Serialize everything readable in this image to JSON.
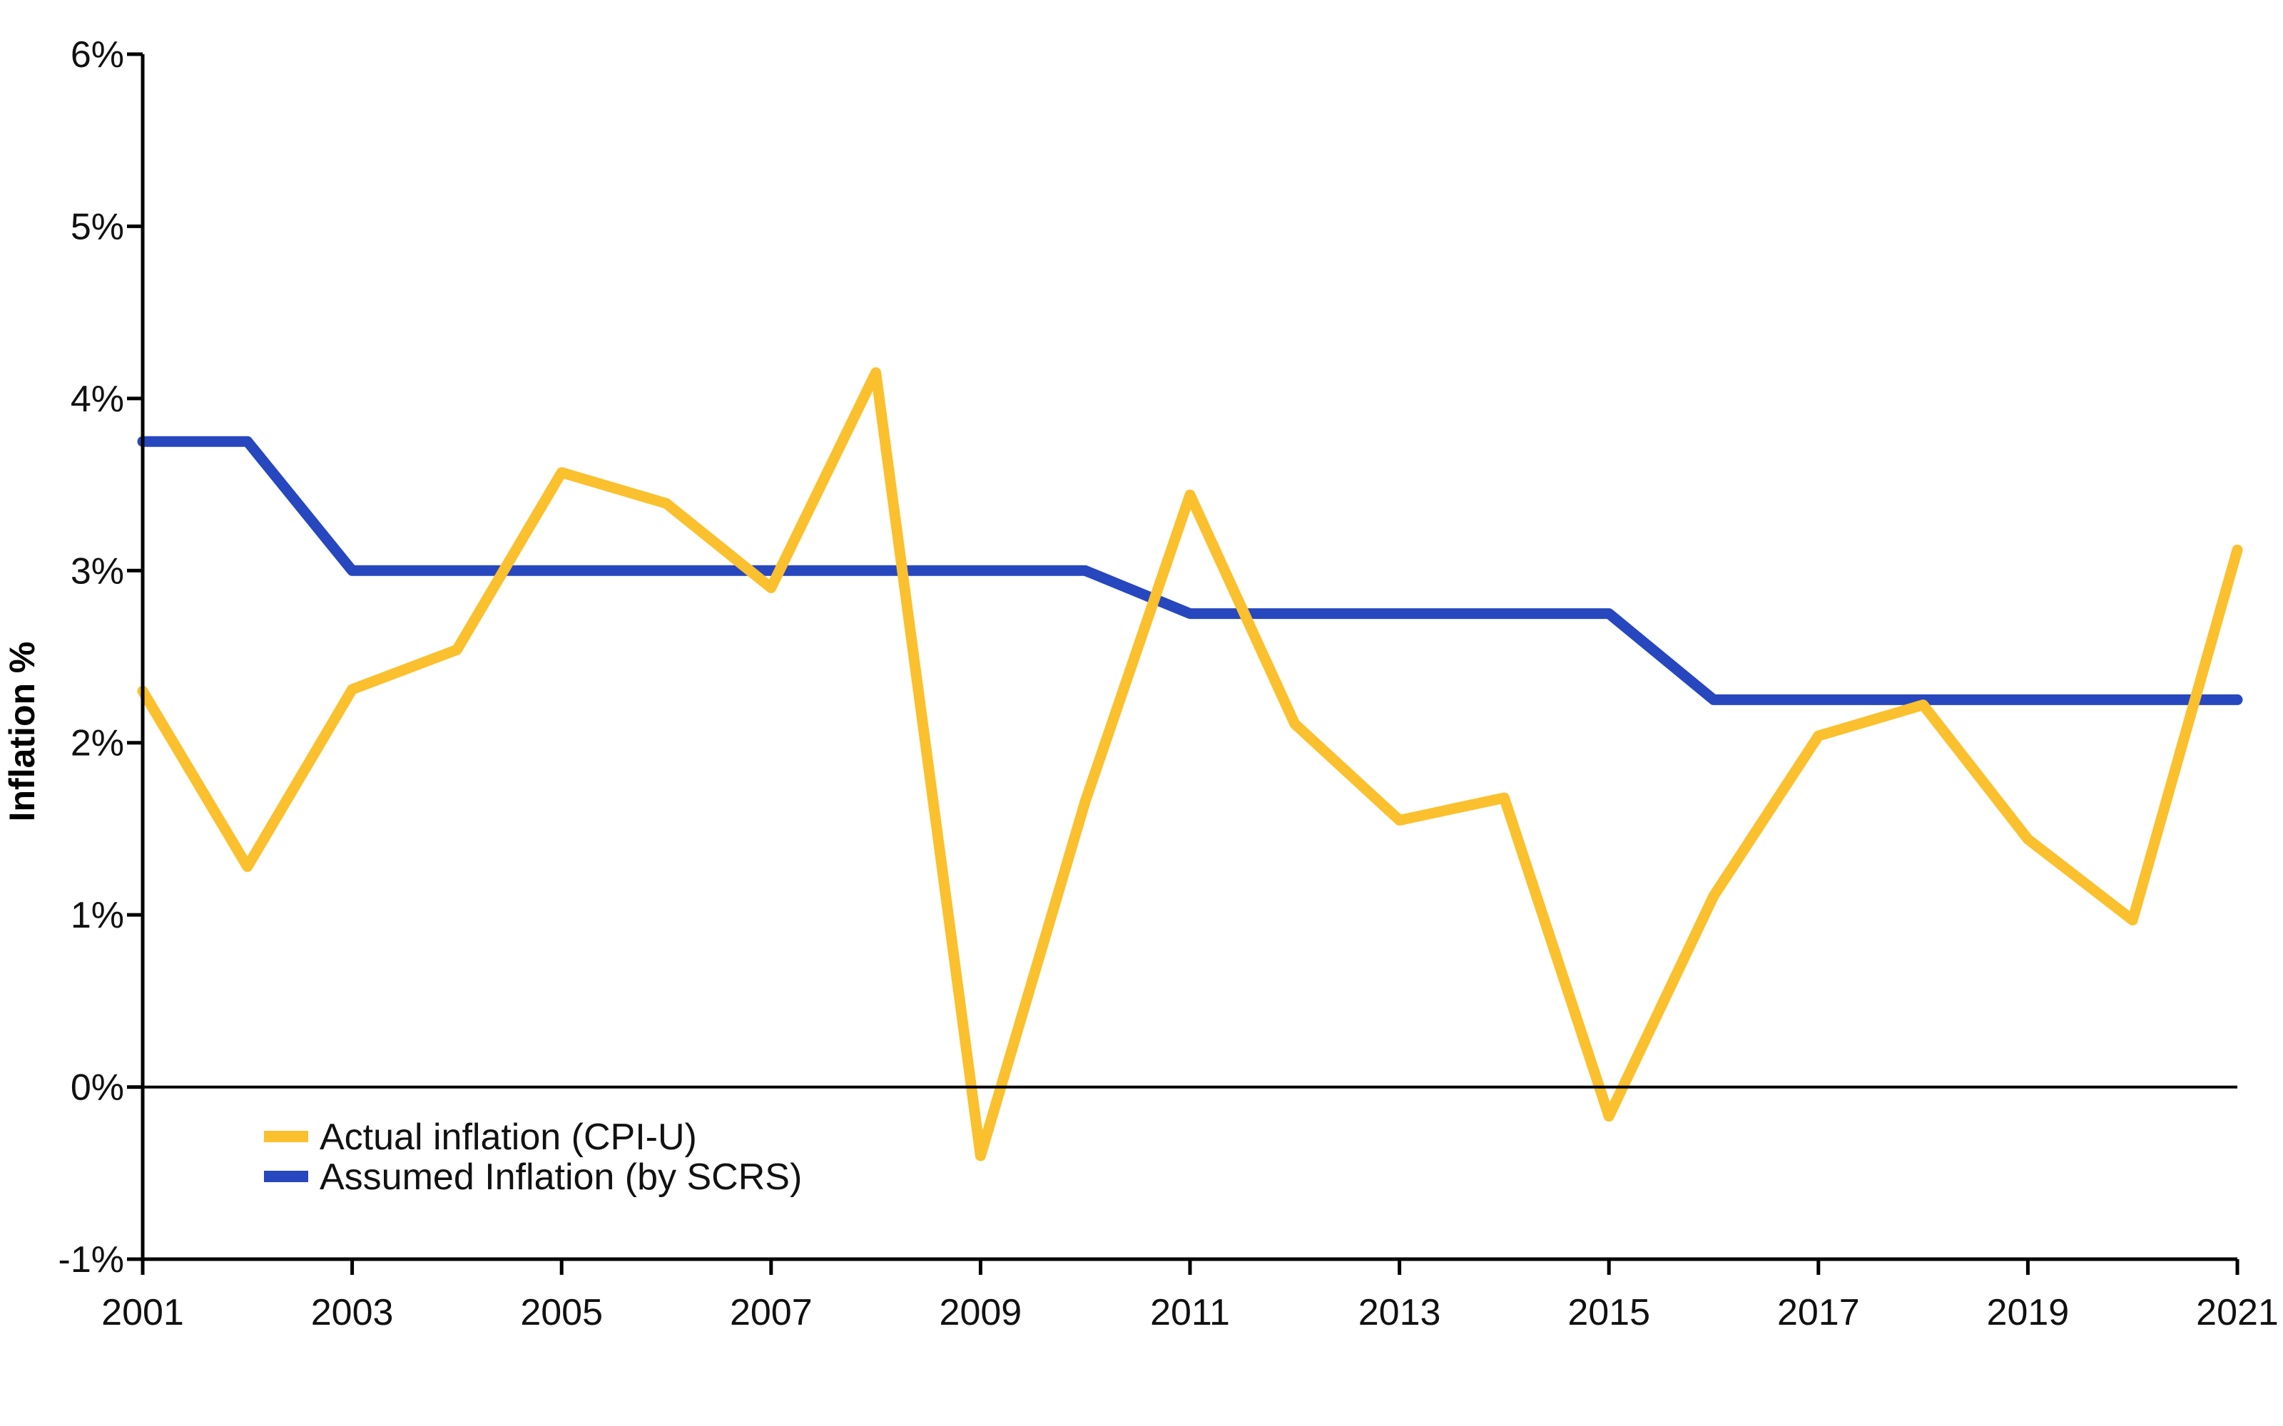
{
  "chart_data": {
    "type": "line",
    "title": "",
    "xlabel": "",
    "ylabel": "Inflation %",
    "x": [
      2001,
      2002,
      2003,
      2004,
      2005,
      2006,
      2007,
      2008,
      2009,
      2010,
      2011,
      2012,
      2013,
      2014,
      2015,
      2016,
      2017,
      2018,
      2019,
      2020,
      2021
    ],
    "x_tick_labels": [
      "2001",
      "2003",
      "2005",
      "2007",
      "2009",
      "2011",
      "2013",
      "2015",
      "2017",
      "2019",
      "2021"
    ],
    "ylim": [
      -1,
      6
    ],
    "y_ticks": [
      -1,
      0,
      1,
      2,
      3,
      4,
      5,
      6
    ],
    "y_tick_labels": [
      "-1%",
      "0%",
      "1%",
      "2%",
      "3%",
      "4%",
      "5%",
      "6%"
    ],
    "grid": false,
    "legend_position": "bottom-left",
    "series": [
      {
        "name": "Actual inflation (CPI-U)",
        "color": "#FBC02D",
        "values": [
          2.3,
          1.28,
          2.31,
          2.54,
          3.57,
          3.39,
          2.9,
          4.15,
          -0.4,
          1.66,
          3.44,
          2.11,
          1.55,
          1.68,
          -0.17,
          1.11,
          2.04,
          2.22,
          1.44,
          0.97,
          3.12
        ]
      },
      {
        "name": "Assumed Inflation (by SCRS)",
        "color": "#2747BF",
        "values": [
          3.75,
          3.75,
          3.0,
          3.0,
          3.0,
          3.0,
          3.0,
          3.0,
          3.0,
          3.0,
          2.75,
          2.75,
          2.75,
          2.75,
          2.75,
          2.25,
          2.25,
          2.25,
          2.25,
          2.25,
          2.25
        ]
      }
    ]
  }
}
